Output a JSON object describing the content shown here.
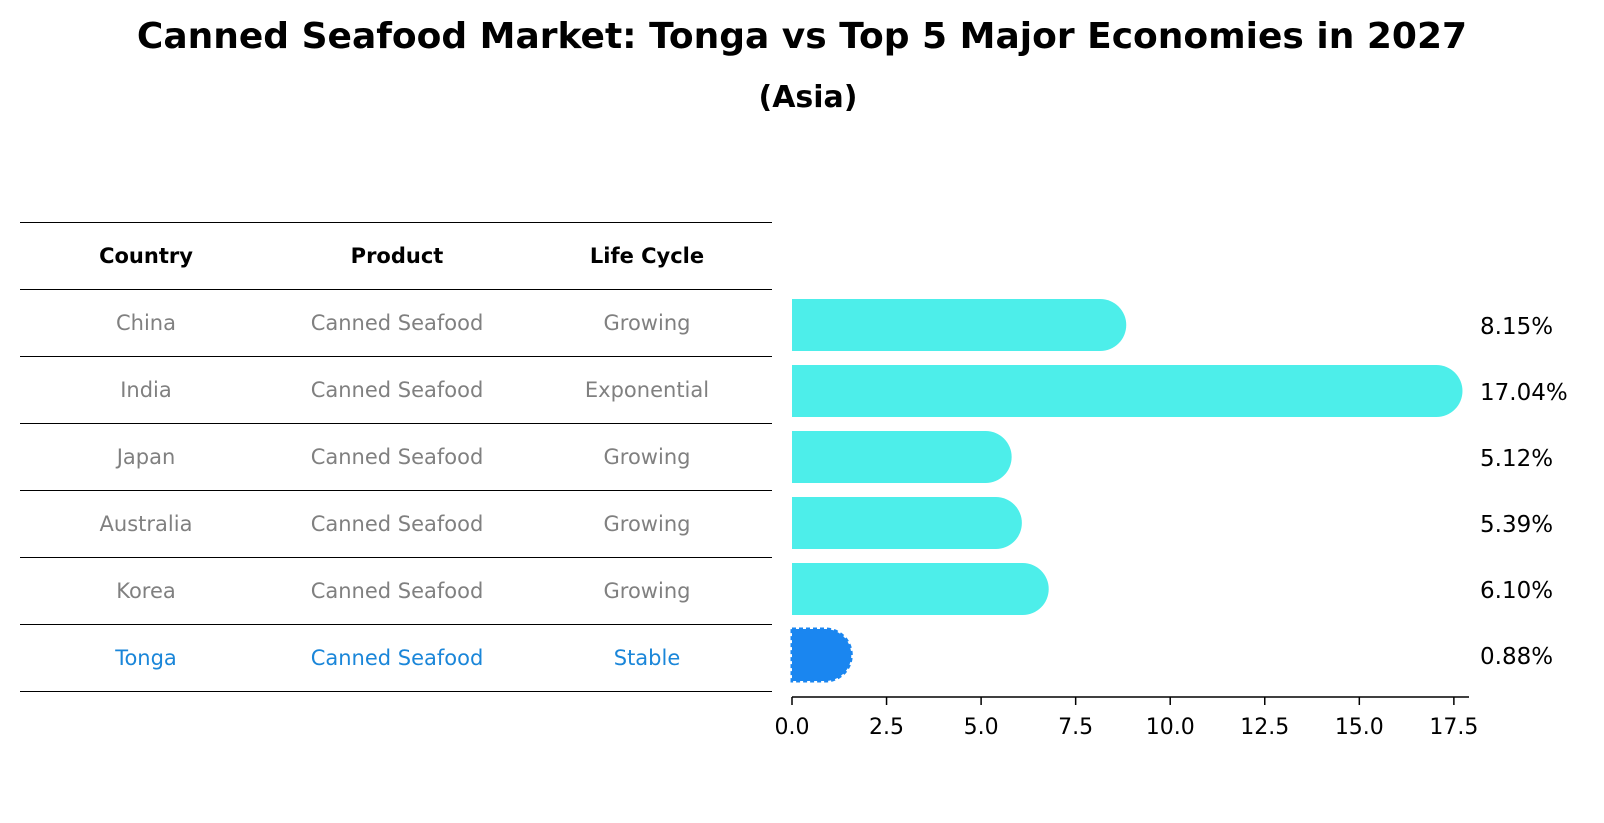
{
  "chart_data": {
    "type": "bar",
    "orientation": "horizontal",
    "title": "Canned Seafood Market: Tonga vs Top 5 Major Economies in 2027",
    "subtitle": "(Asia)",
    "table": {
      "headers": [
        "Country",
        "Product",
        "Life Cycle"
      ],
      "rows": [
        [
          "China",
          "Canned Seafood",
          "Growing"
        ],
        [
          "India",
          "Canned Seafood",
          "Exponential"
        ],
        [
          "Japan",
          "Canned Seafood",
          "Growing"
        ],
        [
          "Australia",
          "Canned Seafood",
          "Growing"
        ],
        [
          "Korea",
          "Canned Seafood",
          "Growing"
        ],
        [
          "Tonga",
          "Canned Seafood",
          "Stable"
        ]
      ],
      "highlight_row": 5
    },
    "categories": [
      "China",
      "India",
      "Japan",
      "Australia",
      "Korea",
      "Tonga"
    ],
    "values": [
      8.15,
      17.04,
      5.12,
      5.39,
      6.1,
      0.88
    ],
    "value_labels": [
      "8.15%",
      "17.04%",
      "5.12%",
      "5.39%",
      "6.10%",
      "0.88%"
    ],
    "xlim": [
      0,
      17.9
    ],
    "xticks": [
      0.0,
      2.5,
      5.0,
      7.5,
      10.0,
      12.5,
      15.0,
      17.5
    ],
    "xtick_labels": [
      "0.0",
      "2.5",
      "5.0",
      "7.5",
      "10.0",
      "12.5",
      "15.0",
      "17.5"
    ],
    "colors": {
      "bar": "#4deeea",
      "highlight_bar": "#1a86f0",
      "highlight_text": "#1a86d9",
      "muted_text": "#808080"
    }
  }
}
